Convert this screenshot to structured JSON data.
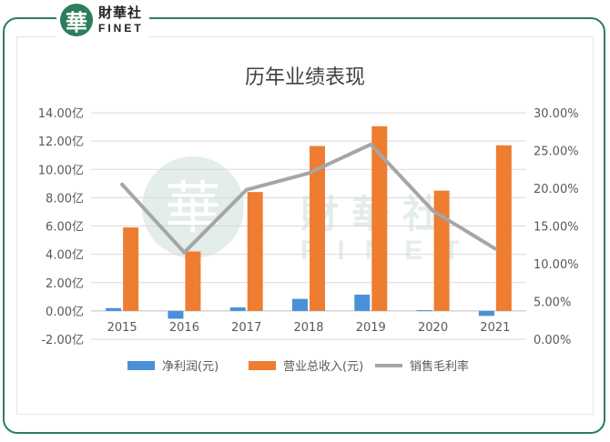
{
  "logo": {
    "mark": "華",
    "name_cn": "財華社",
    "name_en": "FINET"
  },
  "watermark": {
    "mark": "華",
    "name_cn": "財華社",
    "name_en": "FINET"
  },
  "colors": {
    "frame": "#2e7d5b",
    "net_profit": "#4a90d9",
    "revenue": "#ee7d31",
    "gross_margin": "#a6a6a6"
  },
  "chart_data": {
    "type": "bar",
    "title": "历年业绩表现",
    "categories": [
      "2015",
      "2016",
      "2017",
      "2018",
      "2019",
      "2020",
      "2021"
    ],
    "y_left": {
      "ylim": [
        -2,
        14
      ],
      "ticks": [
        "-2.00亿",
        "0.00亿",
        "2.00亿",
        "4.00亿",
        "6.00亿",
        "8.00亿",
        "10.00亿",
        "12.00亿",
        "14.00亿"
      ],
      "tick_values": [
        -2,
        0,
        2,
        4,
        6,
        8,
        10,
        12,
        14
      ]
    },
    "y_right": {
      "ylim": [
        0,
        30
      ],
      "ticks": [
        "0.00%",
        "5.00%",
        "10.00%",
        "15.00%",
        "20.00%",
        "25.00%",
        "30.00%"
      ],
      "tick_values": [
        0,
        5,
        10,
        15,
        20,
        25,
        30
      ]
    },
    "series": [
      {
        "name": "净利润(元)",
        "type": "bar",
        "axis": "left",
        "values": [
          0.2,
          -0.55,
          0.25,
          0.85,
          1.15,
          0.05,
          -0.35
        ]
      },
      {
        "name": "营业总收入(元)",
        "type": "bar",
        "axis": "left",
        "values": [
          5.9,
          4.2,
          8.4,
          11.65,
          13.05,
          8.5,
          11.7
        ]
      },
      {
        "name": "销售毛利率",
        "type": "line",
        "axis": "right",
        "values": [
          20.5,
          11.5,
          19.8,
          22.0,
          25.8,
          17.0,
          12.0
        ]
      }
    ],
    "legend_position": "bottom",
    "grid": true
  }
}
